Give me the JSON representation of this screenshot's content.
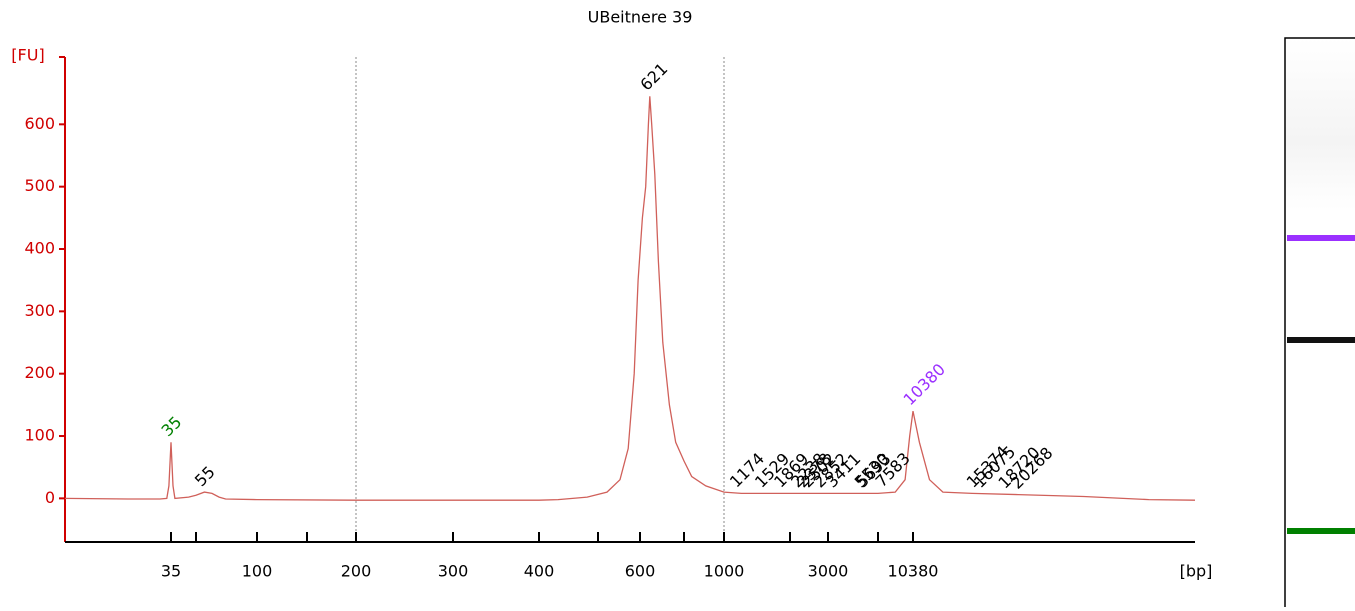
{
  "chart_data": {
    "type": "line",
    "title": "UBeitnere 39",
    "y_label": "[FU]",
    "x_label": "[bp]",
    "log_like_x": true,
    "color": "#d0605a",
    "y_axis_color": "#d00000",
    "ylim": [
      -70,
      708
    ],
    "yticks": [
      0,
      100,
      200,
      300,
      400,
      500,
      600
    ],
    "xlim": [
      8,
      60000
    ],
    "xticks": [
      35,
      100,
      200,
      300,
      400,
      600,
      1000,
      3000,
      10380
    ],
    "xminor_ticks": [
      50,
      150,
      500,
      700,
      2000,
      7000
    ],
    "xgrid": [
      200,
      1000
    ],
    "x": [
      8,
      20,
      30,
      33,
      34,
      35,
      36,
      37,
      45,
      50,
      55,
      60,
      65,
      70,
      100,
      200,
      300,
      400,
      430,
      480,
      520,
      550,
      570,
      585,
      595,
      605,
      612,
      618,
      621,
      625,
      632,
      640,
      650,
      665,
      680,
      700,
      750,
      850,
      1000,
      1200,
      1500,
      2000,
      3000,
      5000,
      7000,
      8500,
      9500,
      10000,
      10380,
      10800,
      11500,
      12500,
      15000,
      20000,
      30000,
      45000,
      60000
    ],
    "values": [
      0,
      -1,
      -1,
      0,
      20,
      90,
      20,
      0,
      2,
      5,
      10,
      8,
      2,
      -1,
      -2,
      -3,
      -3,
      -3,
      -2,
      2,
      10,
      30,
      80,
      200,
      350,
      450,
      500,
      600,
      645,
      600,
      520,
      380,
      250,
      150,
      90,
      60,
      35,
      20,
      10,
      8,
      8,
      8,
      8,
      8,
      8,
      10,
      30,
      100,
      140,
      90,
      30,
      10,
      8,
      6,
      3,
      -2,
      -3
    ],
    "peaks": [
      {
        "bp": 35,
        "color": "#008000"
      },
      {
        "bp": 55,
        "color": "#000000"
      },
      {
        "bp": 621,
        "color": "#000000"
      },
      {
        "bp": 1174,
        "color": "#000000"
      },
      {
        "bp": 1529,
        "color": "#000000"
      },
      {
        "bp": 1869,
        "color": "#000000"
      },
      {
        "bp": 2238,
        "color": "#000000"
      },
      {
        "bp": 2378,
        "color": "#000000"
      },
      {
        "bp": 2502,
        "color": "#000000"
      },
      {
        "bp": 2852,
        "color": "#000000"
      },
      {
        "bp": 3411,
        "color": "#000000"
      },
      {
        "bp": 5530,
        "color": "#000000"
      },
      {
        "bp": 5693,
        "color": "#000000"
      },
      {
        "bp": 7583,
        "color": "#000000"
      },
      {
        "bp": 10380,
        "color": "#9b30ff"
      },
      {
        "bp": 15374,
        "color": "#000000"
      },
      {
        "bp": 16075,
        "color": "#000000"
      },
      {
        "bp": 18720,
        "color": "#000000"
      },
      {
        "bp": 20268,
        "color": "#000000"
      }
    ],
    "gel_bands": [
      {
        "bp": 10380,
        "color": "#9b30ff"
      },
      {
        "bp": 621,
        "color": "#111111"
      },
      {
        "bp": 35,
        "color": "#008000"
      }
    ]
  }
}
